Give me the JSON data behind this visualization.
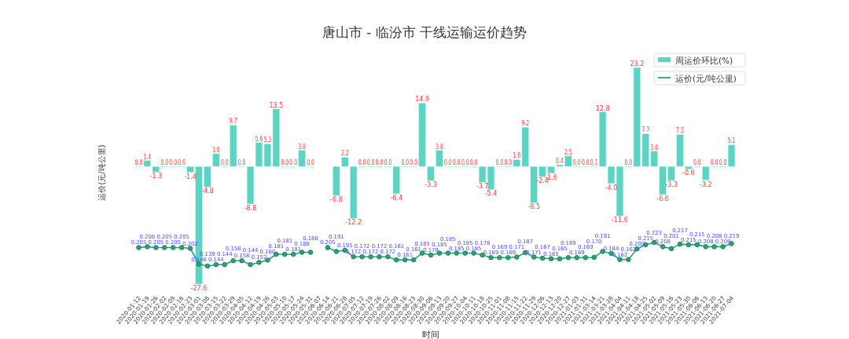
{
  "chart_data": {
    "type": "bar",
    "title": "唐山市 - 临汾市  干线运输运价趋势",
    "ylabel": "运价(元/吨公里)",
    "xlabel": "时间",
    "categories": [
      "2020-01-12",
      "2020-01-19",
      "2020-01-26",
      "2020-02-02",
      "2020-02-09",
      "2020-02-16",
      "2020-02-23",
      "2020-03-01",
      "2020-03-08",
      "2020-03-15",
      "2020-03-22",
      "2020-03-29",
      "2020-04-05",
      "2020-04-12",
      "2020-04-19",
      "2020-04-26",
      "2020-05-03",
      "2020-05-10",
      "2020-05-17",
      "2020-05-24",
      "2020-05-31",
      "2020-06-07",
      "2020-06-14",
      "2020-06-21",
      "2020-06-28",
      "2020-07-05",
      "2020-07-12",
      "2020-07-19",
      "2020-07-26",
      "2020-08-02",
      "2020-08-09",
      "2020-08-16",
      "2020-08-23",
      "2020-08-30",
      "2020-09-06",
      "2020-09-13",
      "2020-09-20",
      "2020-09-27",
      "2020-10-04",
      "2020-10-11",
      "2020-10-18",
      "2020-10-25",
      "2020-11-01",
      "2020-11-08",
      "2020-11-15",
      "2020-11-22",
      "2020-11-29",
      "2020-12-06",
      "2020-12-13",
      "2020-12-20",
      "2020-12-27",
      "2021-01-03",
      "2021-01-31",
      "2021-03-14",
      "2021-03-21",
      "2021-03-28",
      "2021-04-04",
      "2021-04-11",
      "2021-04-18",
      "2021-04-25",
      "2021-05-02",
      "2021-05-09",
      "2021-05-16",
      "2021-05-23",
      "2021-05-30",
      "2021-06-06",
      "2021-06-13",
      "2021-06-20",
      "2021-06-27",
      "2021-07-04"
    ],
    "series": [
      {
        "name": "周运价环比(%)",
        "color": "#5dd3c3",
        "values": [
          0.0,
          1.4,
          -1.3,
          0.0,
          0.0,
          0.0,
          -1.4,
          -27.6,
          -4.8,
          3.0,
          0.0,
          9.7,
          0.0,
          -8.8,
          5.6,
          5.3,
          13.5,
          0.0,
          0.0,
          3.8,
          0.0,
          null,
          null,
          -6.8,
          2.2,
          -12.2,
          0.0,
          0.0,
          0.0,
          0.0,
          -6.4,
          0.0,
          0.0,
          14.9,
          -3.3,
          3.8,
          0.0,
          0.0,
          0.0,
          0.0,
          -3.7,
          -5.4,
          0.0,
          0.0,
          1.6,
          9.2,
          -8.5,
          -2.4,
          -1.6,
          0.4,
          2.5,
          0.0,
          0.0,
          0.1,
          12.8,
          -4.0,
          -11.6,
          0.0,
          23.2,
          7.7,
          3.6,
          -6.6,
          -3.3,
          7.5,
          -0.6,
          0.0,
          -3.2,
          0.0,
          0.0,
          5.1
        ],
        "value_labels": [
          "0.0",
          "1.4",
          "-1.3",
          "0.0",
          "0.0",
          "0.0",
          "-1.4",
          "-27.6",
          "-4.8",
          "3.0",
          "0.0",
          "9.7",
          "0.0",
          "-8.8",
          "5.6",
          "5.3",
          "13.5",
          "0.0",
          "0.0",
          "3.8",
          "0.0",
          null,
          null,
          "-6.8",
          "2.2",
          "-12.2",
          "0.0",
          "0.0",
          "0.0",
          "0.0",
          "-6.4",
          "0.0",
          "0.0",
          "14.9",
          "-3.3",
          "3.8",
          "0.0",
          "0.0",
          "0.0",
          "0.0",
          "-3.7",
          "-5.4",
          "0.0",
          "0.0",
          "1.6",
          "9.2",
          "-8.5",
          "-2.4",
          "-1.6",
          "0.4",
          "2.5",
          "0.0",
          "0.0",
          "0.1",
          "12.8",
          "-4.0",
          "-11.6",
          "0.0",
          "23.2",
          "7.7",
          "3.6",
          "-6.6",
          "-3.3",
          "7.5",
          "-0.6",
          "0.0",
          "-3.2",
          "0.0",
          "0.0",
          "5.1"
        ]
      },
      {
        "name": "运价(元/吨公里)",
        "type": "line",
        "axis": "y2",
        "color": "#2a9d8f",
        "marker": "circle",
        "values": [
          0.205,
          0.208,
          0.205,
          0.205,
          0.205,
          0.205,
          0.202,
          0.146,
          0.139,
          0.144,
          0.144,
          0.158,
          0.158,
          0.144,
          0.152,
          0.16,
          0.181,
          0.181,
          0.181,
          0.188,
          0.188,
          null,
          0.205,
          0.191,
          0.195,
          0.172,
          0.172,
          0.172,
          0.172,
          0.172,
          0.161,
          0.161,
          0.161,
          0.185,
          0.178,
          0.185,
          0.185,
          0.185,
          0.185,
          0.185,
          0.178,
          0.169,
          0.169,
          0.169,
          0.171,
          0.187,
          0.171,
          0.167,
          0.165,
          0.165,
          0.169,
          0.169,
          0.169,
          0.17,
          0.191,
          0.184,
          0.162,
          0.162,
          0.2,
          0.215,
          0.223,
          0.208,
          0.201,
          0.217,
          0.215,
          0.215,
          0.208,
          0.208,
          0.208,
          0.219
        ],
        "value_labels": [
          "0.205",
          "0.208",
          "0.205",
          "0.205",
          "0.205",
          "0.205",
          "0.202",
          "0.146",
          "0.139",
          "0.144",
          "0.144",
          "0.158",
          "0.158",
          "0.144",
          "0.152",
          "0.160",
          "0.181",
          "0.181",
          "0.181",
          "0.188",
          "0.188",
          null,
          "0.205",
          "0.191",
          "0.195",
          "0.172",
          "0.172",
          "0.172",
          "0.172",
          "0.172",
          "0.161",
          "0.161",
          "0.161",
          "0.185",
          "0.178",
          "0.185",
          "0.185",
          "0.185",
          "0.185",
          "0.185",
          "0.178",
          "0.169",
          "0.169",
          "0.169",
          "0.171",
          "0.187",
          "0.171",
          "0.167",
          "0.165",
          "0.165",
          "0.169",
          "0.169",
          "0.169",
          "0.170",
          "0.191",
          "0.184",
          "0.162",
          "0.162",
          "0.200",
          "0.215",
          "0.223",
          "0.208",
          "0.201",
          "0.217",
          "0.215",
          "0.215",
          "0.208",
          "0.208",
          "0.208",
          "0.219"
        ]
      }
    ],
    "legend": "top right"
  }
}
